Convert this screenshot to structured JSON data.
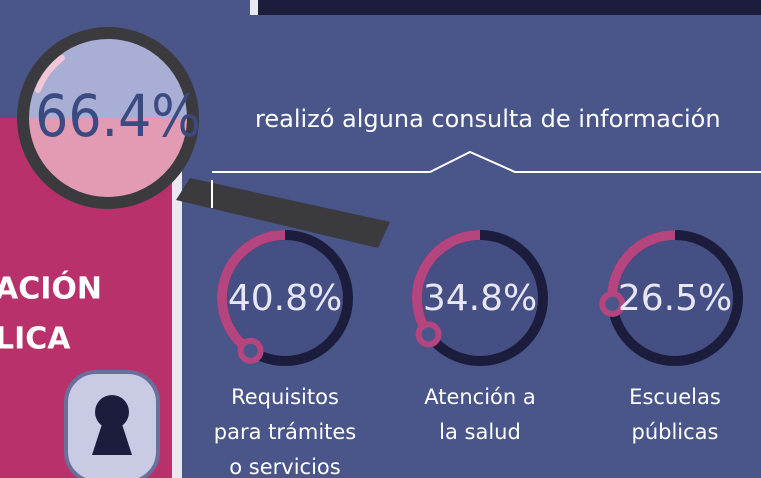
{
  "headline": {
    "value_label": "66.4%",
    "text": "realizó alguna consulta de información"
  },
  "side": {
    "title_lines": [
      "ACIÓN",
      "LICA"
    ]
  },
  "gauges": [
    {
      "value": 40.8,
      "value_label": "40.8%",
      "label_lines": [
        "Requisitos",
        "para trámites",
        "o servicios"
      ]
    },
    {
      "value": 34.8,
      "value_label": "34.8%",
      "label_lines": [
        "Atención a",
        "la salud"
      ]
    },
    {
      "value": 26.5,
      "value_label": "26.5%",
      "label_lines": [
        "Escuelas",
        "públicas"
      ]
    }
  ]
}
